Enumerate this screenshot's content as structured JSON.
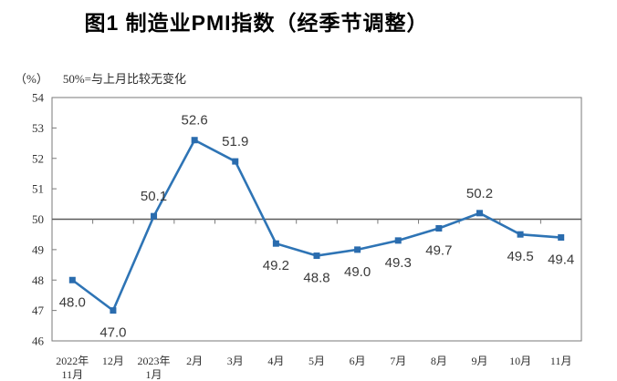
{
  "page": {
    "title": "图1 制造业PMI指数（经季节调整）",
    "unit_label": "（%）",
    "note": "50%=与上月比较无变化"
  },
  "chart_data": {
    "type": "line",
    "title": "图1 制造业PMI指数（经季节调整）",
    "unit": "%",
    "note": "50%=与上月比较无变化",
    "categories": [
      "2022年\n11月",
      "12月",
      "2023年\n1月",
      "2月",
      "3月",
      "4月",
      "5月",
      "6月",
      "7月",
      "8月",
      "9月",
      "10月",
      "11月"
    ],
    "series": [
      {
        "name": "制造业PMI",
        "values": [
          48.0,
          47.0,
          50.1,
          52.6,
          51.9,
          49.2,
          48.8,
          49.0,
          49.3,
          49.7,
          50.2,
          49.5,
          49.4
        ]
      }
    ],
    "data_label_positions": [
      "below",
      "below",
      "above",
      "above",
      "above",
      "below",
      "below",
      "below",
      "below",
      "below",
      "above",
      "below",
      "below"
    ],
    "ylim": [
      46,
      54
    ],
    "ytick_step": 1,
    "yticks": [
      46,
      47,
      48,
      49,
      50,
      51,
      52,
      53,
      54
    ],
    "reference_line": 50,
    "grid": false,
    "legend": "none",
    "marker": "square",
    "colors": {
      "line": "#2E74B5",
      "marker": "#2A6CAE",
      "axis": "#7a7a7a",
      "reference": "#5a5a5a",
      "tick_text": "#303030",
      "data_label_text": "#3a3a3a"
    }
  }
}
